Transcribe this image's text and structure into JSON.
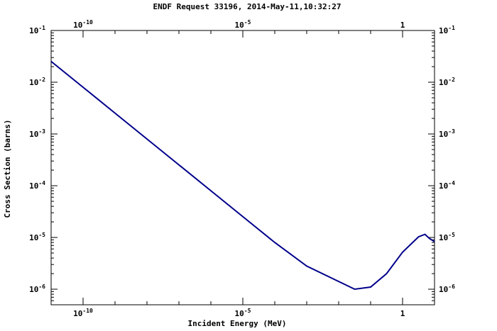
{
  "chart_data": {
    "type": "line",
    "title": "ENDF Request 33196, 2014-May-11,10:32:27",
    "xlabel": "Incident Energy (MeV)",
    "ylabel": "Cross Section (barns)",
    "xscale": "log",
    "yscale": "log",
    "xlim": [
      1e-11,
      10
    ],
    "ylim": [
      5e-07,
      0.1
    ],
    "x_ticks": [
      {
        "value": 1e-10,
        "base": "10",
        "exp": "-10"
      },
      {
        "value": 1e-05,
        "base": "10",
        "exp": "-5"
      },
      {
        "value": 1,
        "base": "1",
        "exp": ""
      }
    ],
    "y_ticks": [
      {
        "value": 0.1,
        "base": "10",
        "exp": "-1"
      },
      {
        "value": 0.01,
        "base": "10",
        "exp": "-2"
      },
      {
        "value": 0.001,
        "base": "10",
        "exp": "-3"
      },
      {
        "value": 0.0001,
        "base": "10",
        "exp": "-4"
      },
      {
        "value": 1e-05,
        "base": "10",
        "exp": "-5"
      },
      {
        "value": 1e-06,
        "base": "10",
        "exp": "-6"
      }
    ],
    "grid": false,
    "line_color": "#00008b",
    "series": [
      {
        "x": [
          1e-11,
          1e-10,
          1e-09,
          1e-08,
          1e-07,
          1e-06,
          1e-05,
          0.0001,
          0.001,
          0.0316,
          0.1,
          0.316,
          1,
          3.16,
          5,
          7,
          10
        ],
        "y": [
          0.0253,
          0.008,
          0.00253,
          0.0008,
          0.000253,
          8e-05,
          2.53e-05,
          8e-06,
          2.8e-06,
          1e-06,
          1.1e-06,
          2e-06,
          5.2e-06,
          1.03e-05,
          1.15e-05,
          9.5e-06,
          8.3e-06
        ]
      }
    ]
  }
}
